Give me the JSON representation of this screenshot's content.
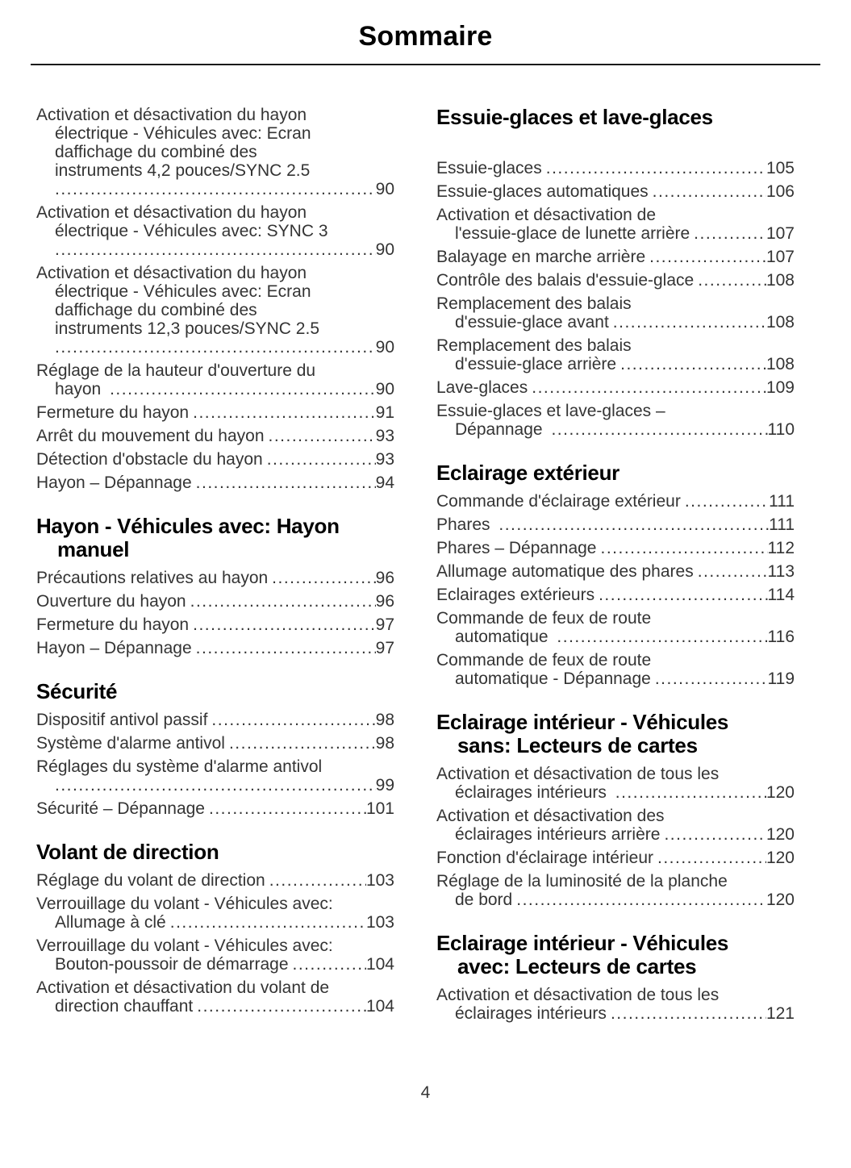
{
  "page": {
    "title": "Sommaire",
    "number": "4"
  },
  "columns": [
    {
      "sections": [
        {
          "heading": null,
          "entries": [
            {
              "lines": [
                "Activation et désactivation du hayon",
                "électrique - Véhicules avec: Ecran",
                "daffichage du combiné des",
                "instruments 4,2 pouces/SYNC 2.5",
                ""
              ],
              "page": "90"
            },
            {
              "lines": [
                "Activation et désactivation du hayon",
                "électrique - Véhicules avec: SYNC 3",
                ""
              ],
              "page": "90"
            },
            {
              "lines": [
                "Activation et désactivation du hayon",
                "électrique - Véhicules avec: Ecran",
                "daffichage du combiné des",
                "instruments 12,3 pouces/SYNC 2.5",
                ""
              ],
              "page": "90"
            },
            {
              "lines": [
                "Réglage de la hauteur d'ouverture du",
                "hayon "
              ],
              "page": "90"
            },
            {
              "lines": [
                "Fermeture du hayon"
              ],
              "page": "91"
            },
            {
              "lines": [
                "Arrêt du mouvement du hayon"
              ],
              "page": "93"
            },
            {
              "lines": [
                "Détection d'obstacle du hayon"
              ],
              "page": "93"
            },
            {
              "lines": [
                "Hayon – Dépannage"
              ],
              "page": "94"
            }
          ]
        },
        {
          "heading": [
            "Hayon - Véhicules avec: Hayon",
            "manuel"
          ],
          "entries": [
            {
              "lines": [
                "Précautions relatives au hayon"
              ],
              "page": "96"
            },
            {
              "lines": [
                "Ouverture du hayon"
              ],
              "page": "96"
            },
            {
              "lines": [
                "Fermeture du hayon"
              ],
              "page": "97"
            },
            {
              "lines": [
                "Hayon – Dépannage"
              ],
              "page": "97"
            }
          ]
        },
        {
          "heading": [
            "Sécurité"
          ],
          "entries": [
            {
              "lines": [
                "Dispositif antivol passif"
              ],
              "page": "98"
            },
            {
              "lines": [
                "Système d'alarme antivol"
              ],
              "page": "98"
            },
            {
              "lines": [
                "Réglages du système d'alarme antivol",
                ""
              ],
              "page": "99"
            },
            {
              "lines": [
                "Sécurité – Dépannage"
              ],
              "page": "101"
            }
          ]
        },
        {
          "heading": [
            "Volant de direction"
          ],
          "entries": [
            {
              "lines": [
                "Réglage du volant de direction"
              ],
              "page": "103"
            },
            {
              "lines": [
                "Verrouillage du volant - Véhicules avec:",
                "Allumage à clé"
              ],
              "page": "103"
            },
            {
              "lines": [
                "Verrouillage du volant - Véhicules avec:",
                "Bouton-poussoir de démarrage"
              ],
              "page": "104"
            },
            {
              "lines": [
                "Activation et désactivation du volant de",
                "direction chauffant"
              ],
              "page": "104"
            }
          ]
        }
      ]
    },
    {
      "sections": [
        {
          "heading": [
            "Essuie-glaces et lave-glaces"
          ],
          "extra_gap": true,
          "entries": [
            {
              "lines": [
                "Essuie-glaces"
              ],
              "page": "105"
            },
            {
              "lines": [
                "Essuie-glaces automatiques"
              ],
              "page": "106"
            },
            {
              "lines": [
                "Activation et désactivation de",
                "l'essuie-glace de lunette arrière"
              ],
              "page": "107"
            },
            {
              "lines": [
                "Balayage en marche arrière"
              ],
              "page": "107"
            },
            {
              "lines": [
                "Contrôle des balais d'essuie-glace"
              ],
              "page": "108"
            },
            {
              "lines": [
                "Remplacement des balais",
                "d'essuie-glace avant"
              ],
              "page": "108"
            },
            {
              "lines": [
                "Remplacement des balais",
                "d'essuie-glace arrière"
              ],
              "page": "108"
            },
            {
              "lines": [
                "Lave-glaces"
              ],
              "page": "109"
            },
            {
              "lines": [
                "Essuie-glaces et lave-glaces –",
                "Dépannage "
              ],
              "page": "110"
            }
          ]
        },
        {
          "heading": [
            "Eclairage extérieur"
          ],
          "entries": [
            {
              "lines": [
                "Commande d'éclairage extérieur"
              ],
              "page": "111"
            },
            {
              "lines": [
                "Phares "
              ],
              "page": "111"
            },
            {
              "lines": [
                "Phares – Dépannage"
              ],
              "page": "112"
            },
            {
              "lines": [
                "Allumage automatique des phares"
              ],
              "page": "113"
            },
            {
              "lines": [
                "Eclairages extérieurs"
              ],
              "page": "114"
            },
            {
              "lines": [
                "Commande de feux de route",
                "automatique "
              ],
              "page": "116"
            },
            {
              "lines": [
                "Commande de feux de route",
                "automatique - Dépannage"
              ],
              "page": "119"
            }
          ]
        },
        {
          "heading": [
            "Eclairage intérieur - Véhicules",
            "sans: Lecteurs de cartes"
          ],
          "entries": [
            {
              "lines": [
                "Activation et désactivation de tous les",
                "éclairages intérieurs "
              ],
              "page": "120"
            },
            {
              "lines": [
                "Activation et désactivation des",
                "éclairages intérieurs arrière"
              ],
              "page": "120"
            },
            {
              "lines": [
                "Fonction d'éclairage intérieur"
              ],
              "page": "120"
            },
            {
              "lines": [
                "Réglage de la luminosité de la planche",
                "de bord"
              ],
              "page": "120"
            }
          ]
        },
        {
          "heading": [
            "Eclairage intérieur - Véhicules",
            "avec: Lecteurs de cartes"
          ],
          "entries": [
            {
              "lines": [
                "Activation et désactivation de tous les",
                "éclairages intérieurs"
              ],
              "page": "121"
            }
          ]
        }
      ]
    }
  ]
}
